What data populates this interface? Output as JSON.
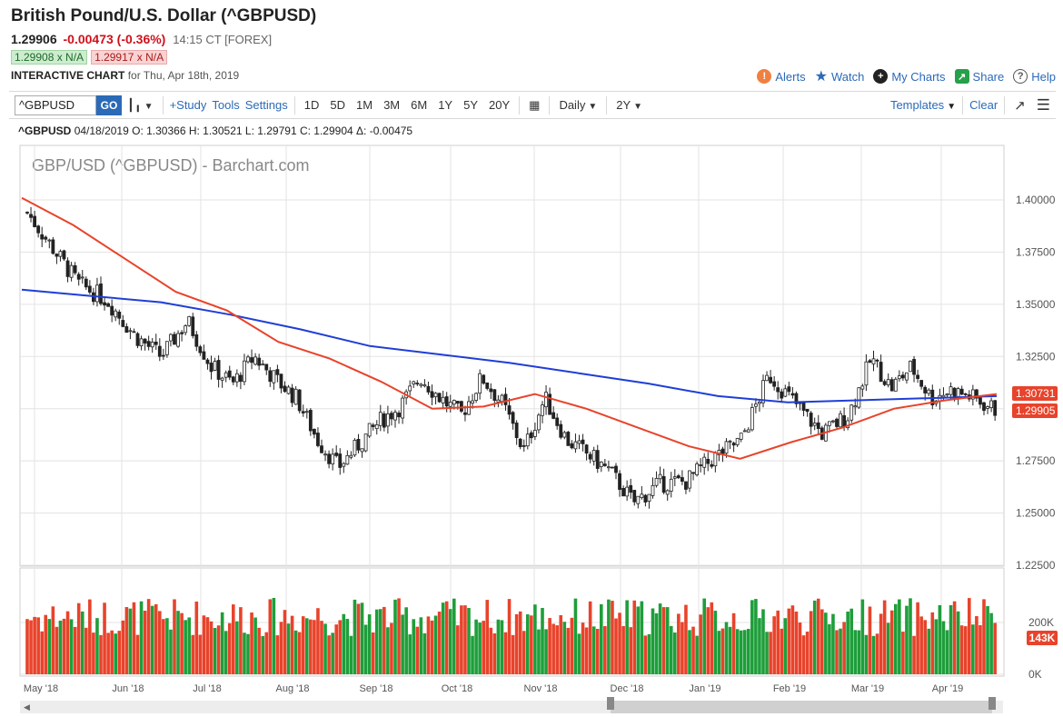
{
  "header": {
    "title": "British Pound/U.S. Dollar (^GBPUSD)",
    "last": "1.29906",
    "change": "-0.00473 (-0.36%)",
    "time": "14:15 CT [FOREX]",
    "bid": "1.29908 x N/A",
    "ask": "1.29917 x N/A",
    "chart_label": "INTERACTIVE CHART",
    "chart_date": "for Thu, Apr 18th, 2019"
  },
  "actions": {
    "alerts": "Alerts",
    "watch": "Watch",
    "my_charts": "My Charts",
    "share": "Share",
    "help": "Help"
  },
  "toolbar": {
    "symbol": "^GBPUSD",
    "go": "GO",
    "study": "+Study",
    "tools": "Tools",
    "settings": "Settings",
    "periods": [
      "1D",
      "5D",
      "1M",
      "3M",
      "6M",
      "1Y",
      "5Y",
      "20Y"
    ],
    "interval": "Daily",
    "range": "2Y",
    "templates": "Templates",
    "clear": "Clear"
  },
  "ohlc": {
    "symbol": "^GBPUSD",
    "date": "04/18/2019",
    "o": "O: 1.30366",
    "h": "H: 1.30521",
    "l": "L: 1.29791",
    "c": "C: 1.29904",
    "d": "Δ: -0.00475"
  },
  "colors": {
    "up": "#1e9e3a",
    "down": "#e8432b",
    "ma50": "#e8432b",
    "ma200": "#1f3ed6",
    "link": "#2b6ab7"
  },
  "chart_data": {
    "type": "candlestick",
    "title": "GBP/USD (^GBPUSD) - Barchart.com",
    "ylim": [
      1.225,
      1.4
    ],
    "yticks": [
      "1.40000",
      "1.37500",
      "1.35000",
      "1.32500",
      "1.30000",
      "1.27500",
      "1.25000",
      "1.22500"
    ],
    "xlabels": [
      "May '18",
      "Jun '18",
      "Jul '18",
      "Aug '18",
      "Sep '18",
      "Oct '18",
      "Nov '18",
      "Dec '18",
      "Jan '19",
      "Feb '19",
      "Mar '19",
      "Apr '19"
    ],
    "close_anchors": [
      [
        "May '18",
        1.394
      ],
      [
        "May '18",
        1.36
      ],
      [
        "May '18",
        1.352
      ],
      [
        "Jun '18",
        1.335
      ],
      [
        "Jun '18",
        1.325
      ],
      [
        "Jun '18",
        1.342
      ],
      [
        "Jul '18",
        1.32
      ],
      [
        "Jul '18",
        1.312
      ],
      [
        "Jul '18",
        1.325
      ],
      [
        "Jul '18",
        1.314
      ],
      [
        "Aug '18",
        1.305
      ],
      [
        "Aug '18",
        1.285
      ],
      [
        "Aug '18",
        1.272
      ],
      [
        "Aug '18",
        1.283
      ],
      [
        "Sep '18",
        1.294
      ],
      [
        "Sep '18",
        1.301
      ],
      [
        "Sep '18",
        1.315
      ],
      [
        "Sep '18",
        1.305
      ],
      [
        "Oct '18",
        1.297
      ],
      [
        "Oct '18",
        1.315
      ],
      [
        "Oct '18",
        1.302
      ],
      [
        "Oct '18",
        1.28
      ],
      [
        "Nov '18",
        1.305
      ],
      [
        "Nov '18",
        1.285
      ],
      [
        "Nov '18",
        1.278
      ],
      [
        "Nov '18",
        1.27
      ],
      [
        "Dec '18",
        1.255
      ],
      [
        "Dec '18",
        1.264
      ],
      [
        "Dec '18",
        1.265
      ],
      [
        "Jan '19",
        1.276
      ],
      [
        "Jan '19",
        1.285
      ],
      [
        "Jan '19",
        1.316
      ],
      [
        "Feb '19",
        1.302
      ],
      [
        "Feb '19",
        1.288
      ],
      [
        "Feb '19",
        1.297
      ],
      [
        "Mar '19",
        1.324
      ],
      [
        "Mar '19",
        1.31
      ],
      [
        "Mar '19",
        1.32
      ],
      [
        "Mar '19",
        1.305
      ],
      [
        "Apr '19",
        1.309
      ],
      [
        "Apr '19",
        1.306
      ],
      [
        "Apr '19",
        1.2991
      ]
    ],
    "ma50": {
      "name": "",
      "values": [
        1.401,
        1.388,
        1.372,
        1.356,
        1.347,
        1.332,
        1.324,
        1.313,
        1.3,
        1.301,
        1.307,
        1.3,
        1.291,
        1.282,
        1.276,
        1.284,
        1.291,
        1.3,
        1.304,
        1.307
      ]
    },
    "ma200": {
      "name": "",
      "values": [
        1.357,
        1.354,
        1.351,
        1.345,
        1.338,
        1.33,
        1.326,
        1.322,
        1.317,
        1.312,
        1.306,
        1.303,
        1.304,
        1.305,
        1.306
      ]
    },
    "last_price": "1.29905",
    "ma_value": "1.30731",
    "volume": {
      "yticks": [
        "200K",
        "0K"
      ],
      "ylim": [
        0,
        250000
      ],
      "last": "143K"
    }
  }
}
